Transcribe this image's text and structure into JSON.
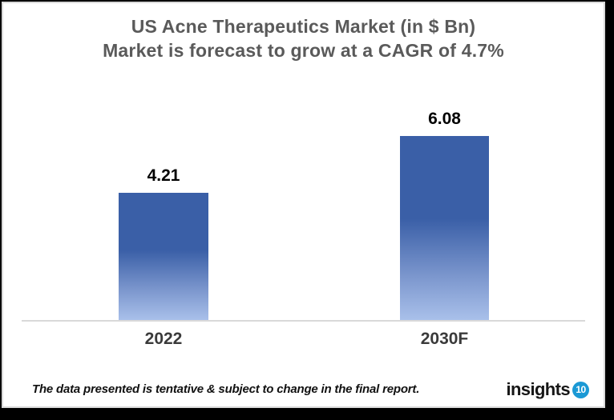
{
  "title": {
    "line1": "US Acne Therapeutics Market (in $ Bn)",
    "line2": "Market is forecast to grow at a CAGR of 4.7%",
    "color": "#5a5a5a"
  },
  "chart_data": {
    "type": "bar",
    "categories": [
      "2022",
      "2030F"
    ],
    "values": [
      4.21,
      6.08
    ],
    "data_labels": [
      "4.21",
      "6.08"
    ],
    "title": "US Acne Therapeutics Market (in $ Bn)",
    "subtitle": "Market is forecast to grow at a CAGR of 4.7%",
    "xlabel": "",
    "ylabel": "",
    "ylim": [
      0,
      6.5
    ],
    "grid": false,
    "legend": false,
    "bar_gradient_top": "#3a5fa7",
    "bar_gradient_bottom": "#a9c0ea",
    "axis_line_color": "#d9d9d9"
  },
  "footer": {
    "note": "The data presented is tentative & subject to change in the final report.",
    "logo_text": "insights",
    "logo_badge": "10",
    "logo_badge_color": "#1b99d5",
    "logo_text_color": "#161616"
  }
}
